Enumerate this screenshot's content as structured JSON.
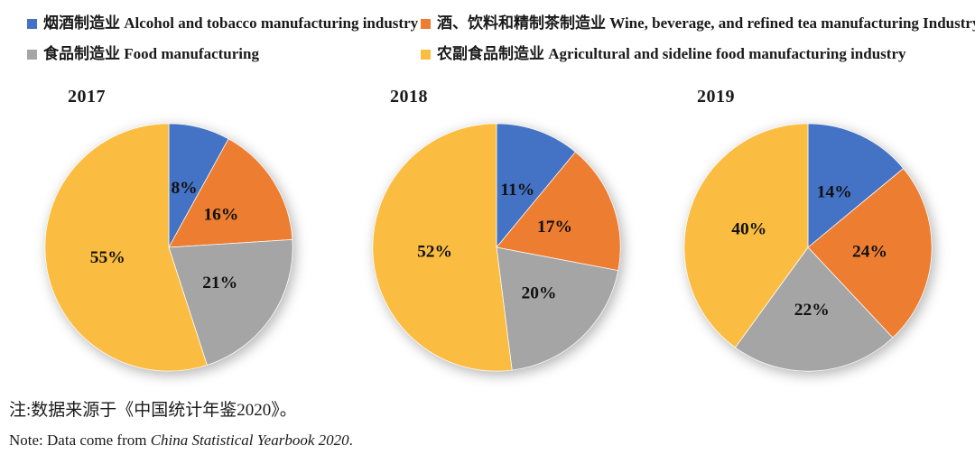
{
  "legend": {
    "items": [
      {
        "key": "alcohol-tobacco",
        "label": "烟酒制造业 Alcohol and tobacco manufacturing industry",
        "color": "#4472C4"
      },
      {
        "key": "wine-beverage-tea",
        "label": "酒、饮料和精制茶制造业 Wine, beverage, and refined tea manufacturing Industry",
        "color": "#ED7D31"
      },
      {
        "key": "food-manufacturing",
        "label": "食品制造业 Food manufacturing",
        "color": "#A5A5A5"
      },
      {
        "key": "agri-sideline-food",
        "label": "农副食品制造业 Agricultural and sideline food manufacturing industry",
        "color": "#FBBD41"
      }
    ]
  },
  "chart_data": [
    {
      "type": "pie",
      "title": "2017",
      "categories": [
        "烟酒制造业 Alcohol and tobacco manufacturing industry",
        "酒、饮料和精制茶制造业 Wine, beverage, and refined tea manufacturing Industry",
        "食品制造业 Food manufacturing",
        "农副食品制造业 Agricultural and sideline food manufacturing industry"
      ],
      "values": [
        8,
        16,
        21,
        55
      ],
      "colors": [
        "#4472C4",
        "#ED7D31",
        "#A5A5A5",
        "#FBBD41"
      ],
      "label_format": "percent",
      "start_angle_deg": 0,
      "direction": "clockwise",
      "labels_inside": true
    },
    {
      "type": "pie",
      "title": "2018",
      "categories": [
        "烟酒制造业 Alcohol and tobacco manufacturing industry",
        "酒、饮料和精制茶制造业 Wine, beverage, and refined tea manufacturing Industry",
        "食品制造业 Food manufacturing",
        "农副食品制造业 Agricultural and sideline food manufacturing industry"
      ],
      "values": [
        11,
        17,
        20,
        52
      ],
      "colors": [
        "#4472C4",
        "#ED7D31",
        "#A5A5A5",
        "#FBBD41"
      ],
      "label_format": "percent",
      "start_angle_deg": 0,
      "direction": "clockwise",
      "labels_inside": true
    },
    {
      "type": "pie",
      "title": "2019",
      "categories": [
        "烟酒制造业 Alcohol and tobacco manufacturing industry",
        "酒、饮料和精制茶制造业 Wine, beverage, and refined tea manufacturing Industry",
        "食品制造业 Food manufacturing",
        "农副食品制造业 Agricultural and sideline food manufacturing industry"
      ],
      "values": [
        14,
        24,
        22,
        40
      ],
      "colors": [
        "#4472C4",
        "#ED7D31",
        "#A5A5A5",
        "#FBBD41"
      ],
      "label_format": "percent",
      "start_angle_deg": 0,
      "direction": "clockwise",
      "labels_inside": true
    }
  ],
  "notes": {
    "chinese": "注:数据来源于《中国统计年鉴2020》。",
    "english_prefix": "Note: Data come from ",
    "english_source": "China Statistical Yearbook 2020",
    "english_suffix": "."
  }
}
